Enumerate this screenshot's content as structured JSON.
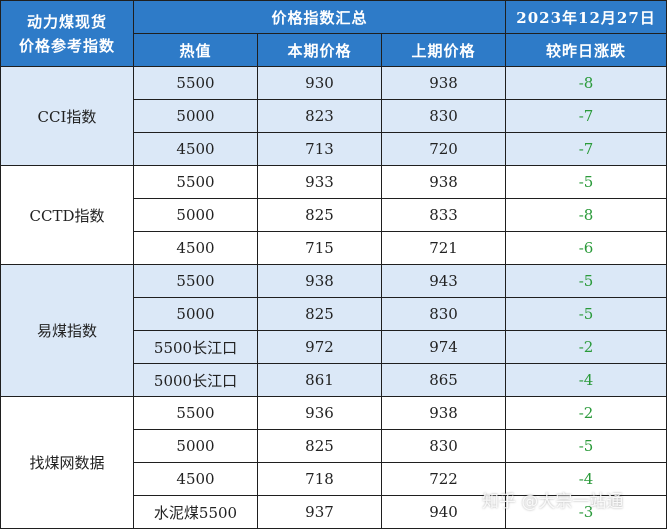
{
  "header": {
    "corner_line1": "动力煤现货",
    "corner_line2": "价格参考指数",
    "summary_title": "价格指数汇总",
    "date": "2023年12月27日",
    "columns": [
      "热值",
      "本期价格",
      "上期价格",
      "较昨日涨跌"
    ]
  },
  "groups": [
    {
      "name": "CCI指数",
      "rows": [
        {
          "heat": "5500",
          "current": "930",
          "previous": "938",
          "change": "-8"
        },
        {
          "heat": "5000",
          "current": "823",
          "previous": "830",
          "change": "-7"
        },
        {
          "heat": "4500",
          "current": "713",
          "previous": "720",
          "change": "-7"
        }
      ]
    },
    {
      "name": "CCTD指数",
      "rows": [
        {
          "heat": "5500",
          "current": "933",
          "previous": "938",
          "change": "-5"
        },
        {
          "heat": "5000",
          "current": "825",
          "previous": "833",
          "change": "-8"
        },
        {
          "heat": "4500",
          "current": "715",
          "previous": "721",
          "change": "-6"
        }
      ]
    },
    {
      "name": "易煤指数",
      "rows": [
        {
          "heat": "5500",
          "current": "938",
          "previous": "943",
          "change": "-5"
        },
        {
          "heat": "5000",
          "current": "825",
          "previous": "830",
          "change": "-5"
        },
        {
          "heat": "5500长江口",
          "current": "972",
          "previous": "974",
          "change": "-2"
        },
        {
          "heat": "5000长江口",
          "current": "861",
          "previous": "865",
          "change": "-4"
        }
      ]
    },
    {
      "name": "找煤网数据",
      "rows": [
        {
          "heat": "5500",
          "current": "936",
          "previous": "938",
          "change": "-2"
        },
        {
          "heat": "5000",
          "current": "825",
          "previous": "830",
          "change": "-5"
        },
        {
          "heat": "4500",
          "current": "718",
          "previous": "722",
          "change": "-4"
        },
        {
          "heat": "水泥煤5500",
          "current": "937",
          "previous": "940",
          "change": "-3"
        }
      ]
    }
  ],
  "watermark": "知乎 @大宗一站通",
  "colors": {
    "header_bg": "#2e7bc8",
    "shade_bg": "#dbe8f7",
    "change_green": "#2a9a3a"
  }
}
